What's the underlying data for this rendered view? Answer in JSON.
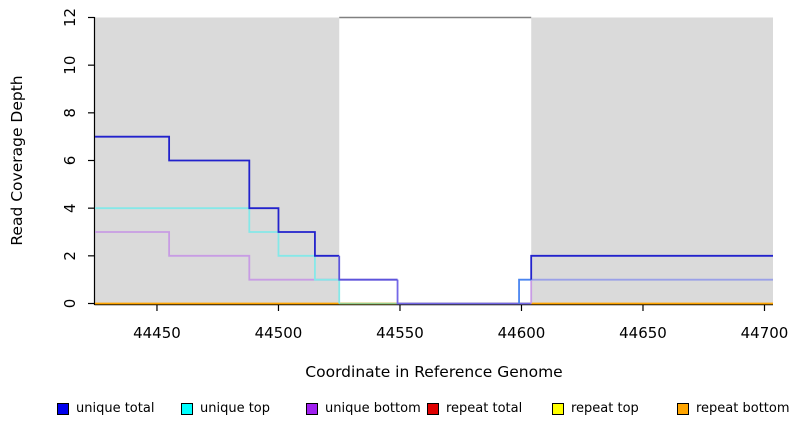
{
  "chart_data": {
    "type": "line",
    "subtype": "step-coverage",
    "title": "",
    "xlabel": "Coordinate in Reference Genome",
    "ylabel": "Read Coverage Depth",
    "xlim": [
      44424.5,
      44703.5
    ],
    "ylim": [
      0,
      12
    ],
    "x_ticks": [
      44450,
      44500,
      44550,
      44600,
      44650,
      44700
    ],
    "y_ticks": [
      0,
      2,
      4,
      6,
      8,
      10,
      12
    ],
    "grid": false,
    "legend_position": "bottom",
    "series": [
      {
        "name": "unique total",
        "color": "#0000EE",
        "points": [
          [
            44424.5,
            7
          ],
          [
            44455,
            7
          ],
          [
            44455,
            6
          ],
          [
            44488,
            6
          ],
          [
            44488,
            4
          ],
          [
            44500,
            4
          ],
          [
            44500,
            3
          ],
          [
            44515,
            3
          ],
          [
            44515,
            2
          ],
          [
            44525,
            2
          ],
          [
            44525,
            1
          ],
          [
            44549,
            1
          ],
          [
            44549,
            0
          ],
          [
            44599,
            0
          ],
          [
            44599,
            1
          ],
          [
            44604,
            1
          ],
          [
            44604,
            2
          ],
          [
            44703.5,
            2
          ]
        ]
      },
      {
        "name": "unique top",
        "color": "#00FFFF",
        "points": [
          [
            44424.5,
            4
          ],
          [
            44488,
            4
          ],
          [
            44488,
            3
          ],
          [
            44500,
            3
          ],
          [
            44500,
            2
          ],
          [
            44515,
            2
          ],
          [
            44515,
            1
          ],
          [
            44525,
            1
          ],
          [
            44525,
            0
          ],
          [
            44599,
            0
          ],
          [
            44599,
            1
          ],
          [
            44703.5,
            1
          ]
        ]
      },
      {
        "name": "unique bottom",
        "color": "#A020F0",
        "points": [
          [
            44424.5,
            3
          ],
          [
            44455,
            3
          ],
          [
            44455,
            2
          ],
          [
            44488,
            2
          ],
          [
            44488,
            1
          ],
          [
            44549,
            1
          ],
          [
            44549,
            0
          ],
          [
            44604,
            0
          ],
          [
            44604,
            1
          ],
          [
            44703.5,
            1
          ]
        ]
      },
      {
        "name": "repeat total",
        "color": "#E00000",
        "points": [
          [
            44424.5,
            0
          ],
          [
            44703.5,
            0
          ]
        ]
      },
      {
        "name": "repeat top",
        "color": "#FFFF00",
        "points": [
          [
            44424.5,
            0
          ],
          [
            44703.5,
            0
          ]
        ]
      },
      {
        "name": "repeat bottom",
        "color": "#FFA500",
        "points": [
          [
            44424.5,
            0
          ],
          [
            44703.5,
            0
          ]
        ]
      }
    ],
    "shaded_regions": [
      {
        "x0": 44424.5,
        "x1": 44525,
        "fill": "#DADADA",
        "label": "repeat-region-left"
      },
      {
        "x0": 44604,
        "x1": 44703.5,
        "fill": "#DADADA",
        "label": "repeat-region-right"
      }
    ],
    "gap_top_line": {
      "x0": 44525,
      "x1": 44604,
      "y": 12,
      "color": "#808080"
    }
  },
  "render_lines": [
    {
      "name": "repeat-bottom-baseline",
      "color": "#FFA500",
      "w": 1.8,
      "pts": [
        [
          44424.5,
          0
        ],
        [
          44703.5,
          0
        ]
      ]
    },
    {
      "name": "cyan-over-orange-blend",
      "color": "#92CF92",
      "w": 1.6,
      "pts": [
        [
          44525,
          0
        ],
        [
          44604,
          0
        ]
      ]
    },
    {
      "name": "unique-bottom-steps",
      "color": "#C89CE4",
      "w": 1.8,
      "pts": [
        [
          44424.5,
          3
        ],
        [
          44455,
          3
        ],
        [
          44455,
          2
        ],
        [
          44488,
          2
        ],
        [
          44488,
          1
        ],
        [
          44549,
          1
        ]
      ]
    },
    {
      "name": "blue-purple-zero-blend",
      "color": "#7468E8",
      "w": 1.8,
      "pts": [
        [
          44549,
          1
        ],
        [
          44549,
          0
        ],
        [
          44604,
          0
        ]
      ]
    },
    {
      "name": "unique-top-steps",
      "color": "#85E8E8",
      "w": 1.8,
      "pts": [
        [
          44424.5,
          4
        ],
        [
          44488,
          4
        ],
        [
          44488,
          3
        ],
        [
          44500,
          3
        ],
        [
          44500,
          2
        ],
        [
          44515,
          2
        ],
        [
          44515,
          1
        ],
        [
          44525,
          1
        ],
        [
          44525,
          0
        ]
      ]
    },
    {
      "name": "unique-bottom-rise",
      "color": "#C89CE4",
      "w": 1.8,
      "pts": [
        [
          44604,
          0
        ],
        [
          44604,
          1
        ]
      ]
    },
    {
      "name": "blue-cyan-rise-blend",
      "color": "#4A85F0",
      "w": 1.8,
      "pts": [
        [
          44599,
          0
        ],
        [
          44599,
          1
        ],
        [
          44604,
          1
        ]
      ]
    },
    {
      "name": "cyan-purple-right-blend",
      "color": "#9AA0E8",
      "w": 1.8,
      "pts": [
        [
          44604,
          1
        ],
        [
          44703.5,
          1
        ]
      ]
    },
    {
      "name": "unique-total-steps-left",
      "color": "#2222CC",
      "w": 1.8,
      "pts": [
        [
          44424.5,
          7
        ],
        [
          44455,
          7
        ],
        [
          44455,
          6
        ],
        [
          44488,
          6
        ],
        [
          44488,
          4
        ],
        [
          44500,
          4
        ],
        [
          44500,
          3
        ],
        [
          44515,
          3
        ],
        [
          44515,
          2
        ],
        [
          44525,
          2
        ]
      ]
    },
    {
      "name": "blue-over-purple-blend",
      "color": "#5C55DC",
      "w": 1.8,
      "pts": [
        [
          44525,
          2
        ],
        [
          44525,
          1
        ],
        [
          44549,
          1
        ]
      ]
    },
    {
      "name": "unique-total-steps-right",
      "color": "#2222CC",
      "w": 1.8,
      "pts": [
        [
          44604,
          1
        ],
        [
          44604,
          2
        ],
        [
          44703.5,
          2
        ]
      ]
    }
  ],
  "legend": {
    "items": [
      {
        "label": "unique total",
        "color": "#0000EE"
      },
      {
        "label": "unique top",
        "color": "#00FFFF"
      },
      {
        "label": "unique bottom",
        "color": "#A020F0"
      },
      {
        "label": "repeat total",
        "color": "#E00000"
      },
      {
        "label": "repeat top",
        "color": "#FFFF00"
      },
      {
        "label": "repeat bottom",
        "color": "#FFA500"
      }
    ]
  }
}
